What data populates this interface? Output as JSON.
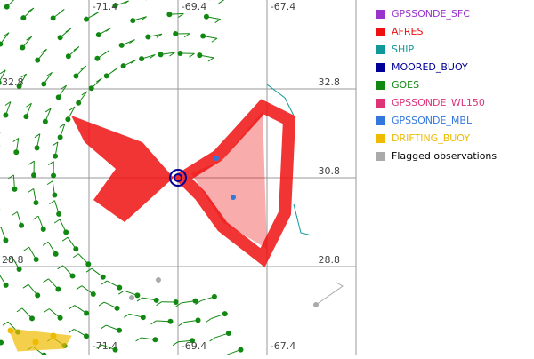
{
  "map": {
    "grid": {
      "longitudes": [
        "-71.4",
        "-69.4",
        "-67.4"
      ],
      "latitudes": [
        "32.8",
        "30.8",
        "28.8"
      ]
    },
    "legend": [
      {
        "name": "GPSSONDE_SFC",
        "color": "#9933cc",
        "text_color": "#9933cc"
      },
      {
        "name": "AFRES",
        "color": "#ee1111",
        "text_color": "#ee1111"
      },
      {
        "name": "SHIP",
        "color": "#119999",
        "text_color": "#119999"
      },
      {
        "name": "MOORED_BUOY",
        "color": "#000099",
        "text_color": "#000099"
      },
      {
        "name": "GOES",
        "color": "#118811",
        "text_color": "#118811"
      },
      {
        "name": "GPSSONDE_WL150",
        "color": "#dd3377",
        "text_color": "#dd3377"
      },
      {
        "name": "GPSSONDE_MBL",
        "color": "#3377dd",
        "text_color": "#3377dd"
      },
      {
        "name": "DRIFTING_BUOY",
        "color": "#eebb00",
        "text_color": "#eebb00"
      },
      {
        "name": "Flagged observations",
        "color": "#aaaaaa",
        "text_color": "#000000"
      }
    ]
  }
}
